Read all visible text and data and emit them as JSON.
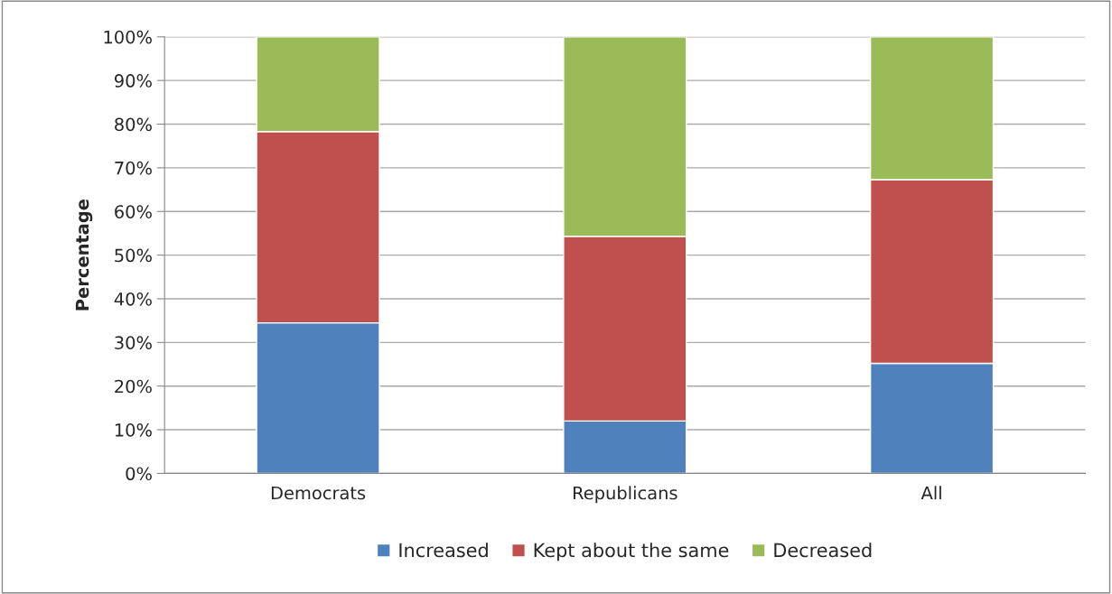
{
  "chart_data": {
    "type": "bar",
    "stacked": true,
    "ylabel": "Percentage",
    "categories": [
      "Democrats",
      "Republicans",
      "All"
    ],
    "series": [
      {
        "name": "Increased",
        "color": "#4f81bd",
        "values": [
          34.5,
          12.0,
          25.2
        ]
      },
      {
        "name": "Kept about the same",
        "color": "#c0504d",
        "values": [
          43.8,
          42.3,
          42.1
        ]
      },
      {
        "name": "Decreased",
        "color": "#9bbb59",
        "values": [
          21.7,
          45.7,
          32.7
        ]
      }
    ],
    "ylim": [
      0,
      100
    ],
    "yticks": [
      {
        "value": 0,
        "label": "0%"
      },
      {
        "value": 10,
        "label": "10%"
      },
      {
        "value": 20,
        "label": "20%"
      },
      {
        "value": 30,
        "label": "30%"
      },
      {
        "value": 40,
        "label": "40%"
      },
      {
        "value": 50,
        "label": "50%"
      },
      {
        "value": 60,
        "label": "60%"
      },
      {
        "value": 70,
        "label": "70%"
      },
      {
        "value": 80,
        "label": "80%"
      },
      {
        "value": 90,
        "label": "90%"
      },
      {
        "value": 100,
        "label": "100%"
      }
    ],
    "grid": "y",
    "legend": "bottom"
  }
}
